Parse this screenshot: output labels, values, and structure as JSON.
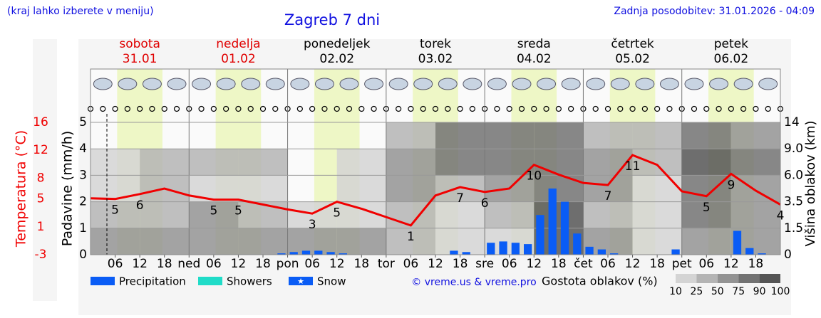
{
  "header": {
    "note": "(kraj lahko izberete v meniju)",
    "updated": "Zadnja posodobitev: 31.01.2026 - 04:09"
  },
  "chart_data": {
    "type": "meteogram",
    "title": "Zagreb 7 dni",
    "days": [
      {
        "name": "sobota",
        "date": "31.01",
        "color": "#e00000"
      },
      {
        "name": "nedelja",
        "date": "01.02",
        "color": "#e00000"
      },
      {
        "name": "ponedeljek",
        "date": "02.02",
        "color": "#000000"
      },
      {
        "name": "torek",
        "date": "03.02",
        "color": "#000000"
      },
      {
        "name": "sreda",
        "date": "04.02",
        "color": "#000000"
      },
      {
        "name": "četrtek",
        "date": "05.02",
        "color": "#000000"
      },
      {
        "name": "petek",
        "date": "06.02",
        "color": "#000000"
      }
    ],
    "categories": [
      null,
      "06",
      "12",
      "18",
      "ned",
      "06",
      "12",
      "18",
      "pon",
      "06",
      "12",
      "18",
      "tor",
      "06",
      "12",
      "18",
      "sre",
      "06",
      "12",
      "18",
      "čet",
      "06",
      "12",
      "18",
      "pet",
      "06",
      "12",
      "18",
      null
    ],
    "ylabel": "Padavine (mm/h)",
    "ylim": [
      0,
      5
    ],
    "yticks": [
      0,
      1,
      2,
      3,
      4,
      5
    ],
    "grid": true,
    "y2label": "Temperatura (°C)",
    "y2lim": [
      -3,
      16
    ],
    "y2ticks": [
      16,
      12,
      8,
      5,
      1,
      -3
    ],
    "y3label": "Višina oblakov (km)",
    "y3ticks": [
      0,
      1.5,
      3.5,
      {
        "value": 6,
        "label": "6.0"
      },
      {
        "value": 9,
        "label": "9.0"
      },
      14
    ],
    "legend": [
      {
        "name": "Precipitation",
        "color": "#0a5cf5"
      },
      {
        "name": "Showers",
        "color": "#20dcc8"
      },
      {
        "name": "Snow",
        "color": "#0a5cf5"
      }
    ],
    "precipitation": {
      "color": "#0a5cf5",
      "values": [
        0,
        0,
        0,
        0,
        0,
        0,
        0,
        0,
        0,
        0,
        0,
        0,
        0,
        0,
        0,
        0.05,
        0.1,
        0.15,
        0.15,
        0.1,
        0.05,
        0,
        0,
        0,
        0,
        0,
        0,
        0,
        0,
        0.15,
        0.1,
        0,
        0.45,
        0.5,
        0.45,
        0.4,
        1.5,
        2.5,
        2.0,
        0.8,
        0.3,
        0.2,
        0.05,
        0,
        0,
        0,
        0,
        0.2,
        0,
        0,
        0,
        0,
        0.9,
        0.25,
        0.05,
        0
      ]
    },
    "temperature": {
      "color": "#f00000",
      "values": [
        5.1,
        5,
        5.7,
        6.5,
        5.5,
        4.9,
        4.9,
        4.2,
        3.5,
        2.9,
        4.6,
        3.6,
        2.4,
        1.2,
        5.5,
        6.7,
        6,
        6.5,
        9.9,
        8.5,
        7.3,
        7,
        11.3,
        9.9,
        6.1,
        5.4,
        8.6,
        6.2,
        4.2
      ],
      "value_labels": [
        null,
        "5",
        "6",
        null,
        null,
        "5",
        "5",
        null,
        null,
        "3",
        "5",
        null,
        null,
        "1",
        null,
        "7",
        "6",
        null,
        "10",
        null,
        null,
        "7",
        "11",
        null,
        null,
        "5",
        "9",
        null,
        "4"
      ]
    },
    "cloud_density": {
      "title": "Gostota oblakov (%)",
      "levels": [
        10,
        25,
        50,
        75,
        90,
        100
      ],
      "colors": [
        "#d4d4d4",
        "#b4b4b4",
        "#939393",
        "#727272",
        "#555555"
      ],
      "values": [
        [
          50,
          25,
          10,
          10,
          0
        ],
        [
          50,
          25,
          25,
          25,
          0
        ],
        [
          50,
          50,
          10,
          25,
          0
        ],
        [
          50,
          25,
          10,
          25,
          0
        ],
        [
          50,
          10,
          0,
          0,
          0
        ],
        [
          50,
          10,
          10,
          10,
          0
        ],
        [
          25,
          25,
          50,
          50,
          25
        ],
        [
          10,
          10,
          25,
          75,
          75
        ],
        [
          10,
          25,
          50,
          75,
          75
        ],
        [
          90,
          90,
          75,
          75,
          75
        ],
        [
          50,
          25,
          50,
          50,
          25
        ],
        [
          10,
          10,
          10,
          25,
          25
        ],
        [
          50,
          75,
          75,
          90,
          75
        ],
        [
          50,
          50,
          50,
          75,
          50
        ]
      ]
    }
  },
  "copyright": "© vreme.us & vreme.pro"
}
